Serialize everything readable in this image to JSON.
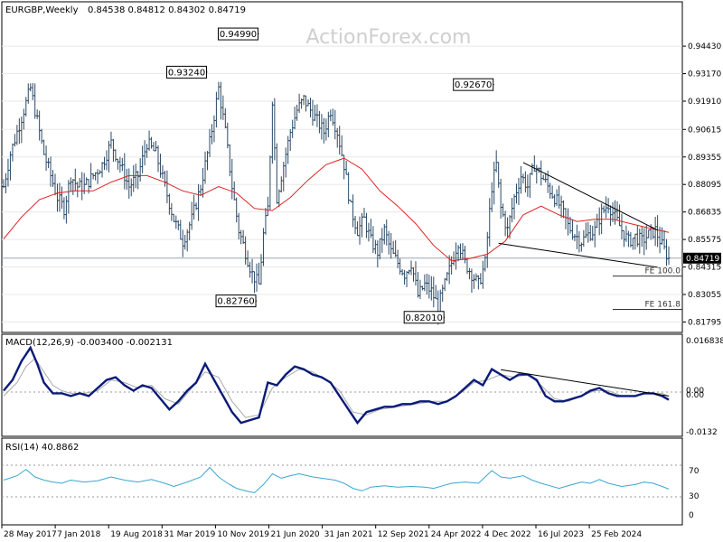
{
  "header": {
    "symbol": "EURGBP,Weekly",
    "ohlc": "0.84538 0.84812 0.84302 0.84719",
    "watermark": "ActionForex.com"
  },
  "colors": {
    "bars": "#2b4a66",
    "ma": "#dd2222",
    "macd": "#0a1a78",
    "signal": "#aaaaaa",
    "rsi": "#3aa6d0",
    "trend": "#000000",
    "fe_line": "#333333",
    "grid": "#e8e8e8",
    "border": "#000000"
  },
  "chart_data": [
    {
      "type": "ohlc",
      "title": "EURGBP,Weekly",
      "y_range": [
        0.814,
        0.958
      ],
      "y_ticks": [
        "0.94430",
        "0.93170",
        "0.91910",
        "0.90615",
        "0.89355",
        "0.88095",
        "0.86835",
        "0.85575",
        "0.84315",
        "0.83055",
        "0.81795"
      ],
      "last_price": "0.84719",
      "x_labels": [
        "28 May 2017",
        "7 Jan 2018",
        "19 Aug 2018",
        "31 Mar 2019",
        "10 Nov 2019",
        "21 Jun 2020",
        "31 Jan 2021",
        "12 Sep 2021",
        "24 Apr 2022",
        "4 Dec 2022",
        "16 Jul 2023",
        "25 Feb 2024"
      ],
      "close_path": [
        [
          0,
          0.88
        ],
        [
          3,
          0.895
        ],
        [
          6,
          0.905
        ],
        [
          9,
          0.915
        ],
        [
          12,
          0.925
        ],
        [
          15,
          0.91
        ],
        [
          18,
          0.895
        ],
        [
          21,
          0.885
        ],
        [
          24,
          0.875
        ],
        [
          27,
          0.87
        ],
        [
          30,
          0.885
        ],
        [
          33,
          0.88
        ],
        [
          36,
          0.88
        ],
        [
          40,
          0.885
        ],
        [
          44,
          0.89
        ],
        [
          48,
          0.9
        ],
        [
          52,
          0.89
        ],
        [
          56,
          0.88
        ],
        [
          60,
          0.885
        ],
        [
          64,
          0.9
        ],
        [
          68,
          0.895
        ],
        [
          72,
          0.88
        ],
        [
          76,
          0.865
        ],
        [
          80,
          0.855
        ],
        [
          84,
          0.865
        ],
        [
          88,
          0.88
        ],
        [
          92,
          0.9
        ],
        [
          96,
          0.925
        ],
        [
          99,
          0.905
        ],
        [
          102,
          0.88
        ],
        [
          105,
          0.86
        ],
        [
          108,
          0.85
        ],
        [
          111,
          0.84
        ],
        [
          114,
          0.835
        ],
        [
          116,
          0.858
        ],
        [
          118,
          0.87
        ],
        [
          120,
          0.92
        ],
        [
          122,
          0.875
        ],
        [
          125,
          0.89
        ],
        [
          128,
          0.905
        ],
        [
          131,
          0.915
        ],
        [
          134,
          0.92
        ],
        [
          137,
          0.915
        ],
        [
          140,
          0.91
        ],
        [
          143,
          0.905
        ],
        [
          146,
          0.915
        ],
        [
          149,
          0.905
        ],
        [
          152,
          0.89
        ],
        [
          155,
          0.87
        ],
        [
          158,
          0.86
        ],
        [
          161,
          0.865
        ],
        [
          164,
          0.855
        ],
        [
          167,
          0.85
        ],
        [
          170,
          0.86
        ],
        [
          173,
          0.85
        ],
        [
          176,
          0.845
        ],
        [
          179,
          0.84
        ],
        [
          182,
          0.845
        ],
        [
          185,
          0.83
        ],
        [
          188,
          0.835
        ],
        [
          191,
          0.832
        ],
        [
          194,
          0.825
        ],
        [
          197,
          0.835
        ],
        [
          200,
          0.845
        ],
        [
          203,
          0.855
        ],
        [
          206,
          0.845
        ],
        [
          209,
          0.84
        ],
        [
          212,
          0.835
        ],
        [
          215,
          0.845
        ],
        [
          218,
          0.88
        ],
        [
          220,
          0.89
        ],
        [
          222,
          0.87
        ],
        [
          225,
          0.86
        ],
        [
          228,
          0.875
        ],
        [
          231,
          0.885
        ],
        [
          234,
          0.88
        ],
        [
          237,
          0.89
        ],
        [
          240,
          0.885
        ],
        [
          243,
          0.88
        ],
        [
          246,
          0.875
        ],
        [
          249,
          0.87
        ],
        [
          252,
          0.862
        ],
        [
          255,
          0.858
        ],
        [
          258,
          0.855
        ],
        [
          261,
          0.858
        ],
        [
          264,
          0.86
        ],
        [
          267,
          0.868
        ],
        [
          270,
          0.872
        ],
        [
          273,
          0.866
        ],
        [
          276,
          0.86
        ],
        [
          279,
          0.855
        ],
        [
          282,
          0.857
        ],
        [
          285,
          0.855
        ],
        [
          288,
          0.858
        ],
        [
          291,
          0.86
        ],
        [
          294,
          0.853
        ],
        [
          297,
          0.847
        ]
      ],
      "ma_path": [
        [
          0,
          0.856
        ],
        [
          8,
          0.866
        ],
        [
          16,
          0.874
        ],
        [
          24,
          0.877
        ],
        [
          32,
          0.878
        ],
        [
          40,
          0.878
        ],
        [
          48,
          0.882
        ],
        [
          56,
          0.885
        ],
        [
          64,
          0.885
        ],
        [
          72,
          0.882
        ],
        [
          80,
          0.878
        ],
        [
          88,
          0.876
        ],
        [
          96,
          0.88
        ],
        [
          104,
          0.877
        ],
        [
          112,
          0.87
        ],
        [
          120,
          0.869
        ],
        [
          128,
          0.875
        ],
        [
          136,
          0.883
        ],
        [
          144,
          0.89
        ],
        [
          152,
          0.893
        ],
        [
          160,
          0.888
        ],
        [
          168,
          0.878
        ],
        [
          176,
          0.871
        ],
        [
          184,
          0.863
        ],
        [
          192,
          0.853
        ],
        [
          200,
          0.846
        ],
        [
          208,
          0.847
        ],
        [
          216,
          0.849
        ],
        [
          224,
          0.855
        ],
        [
          232,
          0.867
        ],
        [
          240,
          0.871
        ],
        [
          248,
          0.867
        ],
        [
          256,
          0.864
        ],
        [
          264,
          0.865
        ],
        [
          272,
          0.865
        ],
        [
          280,
          0.863
        ],
        [
          288,
          0.861
        ],
        [
          297,
          0.859
        ]
      ],
      "labels": [
        {
          "text": "0.93240",
          "at": [
            91,
            0.9324
          ]
        },
        {
          "text": "0.94990",
          "at": [
            114,
            0.9499
          ]
        },
        {
          "text": "0.82760",
          "at": [
            113,
            0.8276
          ]
        },
        {
          "text": "0.92670",
          "at": [
            219,
            0.9267
          ]
        },
        {
          "text": "0.82010",
          "at": [
            197,
            0.8201
          ]
        }
      ],
      "trendlines": [
        [
          [
            232,
            0.891
          ],
          [
            292,
            0.86
          ]
        ],
        [
          [
            221,
            0.854
          ],
          [
            292,
            0.843
          ]
        ]
      ],
      "fe_levels": [
        {
          "text": "FE 100.0",
          "value": 0.839
        },
        {
          "text": "FE 161.8",
          "value": 0.8237
        }
      ]
    },
    {
      "type": "line",
      "title": "MACD(12,26,9) -0.003400 -0.002131",
      "y_range": [
        -0.016,
        0.019
      ],
      "y_ticks": [
        "0.016838",
        "0.00",
        "0.00",
        "-0.0132"
      ],
      "macd_path": [
        [
          0,
          0.0
        ],
        [
          4,
          0.004
        ],
        [
          8,
          0.011
        ],
        [
          12,
          0.016
        ],
        [
          15,
          0.01
        ],
        [
          18,
          0.003
        ],
        [
          22,
          -0.001
        ],
        [
          26,
          -0.001
        ],
        [
          30,
          -0.002
        ],
        [
          34,
          -0.001
        ],
        [
          38,
          -0.002
        ],
        [
          42,
          0.001
        ],
        [
          46,
          0.004
        ],
        [
          50,
          0.005
        ],
        [
          54,
          0.002
        ],
        [
          58,
          0.0
        ],
        [
          62,
          0.002
        ],
        [
          66,
          0.001
        ],
        [
          70,
          -0.003
        ],
        [
          74,
          -0.007
        ],
        [
          78,
          -0.004
        ],
        [
          82,
          0.0
        ],
        [
          86,
          0.003
        ],
        [
          90,
          0.01
        ],
        [
          94,
          0.004
        ],
        [
          98,
          -0.002
        ],
        [
          102,
          -0.008
        ],
        [
          106,
          -0.012
        ],
        [
          110,
          -0.011
        ],
        [
          114,
          -0.01
        ],
        [
          118,
          0.003
        ],
        [
          122,
          0.002
        ],
        [
          126,
          0.006
        ],
        [
          130,
          0.009
        ],
        [
          134,
          0.008
        ],
        [
          138,
          0.006
        ],
        [
          142,
          0.005
        ],
        [
          146,
          0.003
        ],
        [
          150,
          -0.002
        ],
        [
          154,
          -0.007
        ],
        [
          158,
          -0.012
        ],
        [
          162,
          -0.008
        ],
        [
          166,
          -0.007
        ],
        [
          170,
          -0.006
        ],
        [
          174,
          -0.006
        ],
        [
          178,
          -0.005
        ],
        [
          182,
          -0.005
        ],
        [
          186,
          -0.004
        ],
        [
          190,
          -0.004
        ],
        [
          194,
          -0.005
        ],
        [
          198,
          -0.004
        ],
        [
          202,
          -0.002
        ],
        [
          206,
          0.001
        ],
        [
          210,
          0.004
        ],
        [
          214,
          0.002
        ],
        [
          218,
          0.008
        ],
        [
          222,
          0.006
        ],
        [
          226,
          0.004
        ],
        [
          230,
          0.006
        ],
        [
          234,
          0.006
        ],
        [
          238,
          0.004
        ],
        [
          242,
          -0.002
        ],
        [
          246,
          -0.004
        ],
        [
          250,
          -0.004
        ],
        [
          254,
          -0.003
        ],
        [
          258,
          -0.002
        ],
        [
          262,
          0.0
        ],
        [
          266,
          0.001
        ],
        [
          270,
          -0.001
        ],
        [
          274,
          -0.002
        ],
        [
          278,
          -0.002
        ],
        [
          282,
          -0.002
        ],
        [
          286,
          -0.001
        ],
        [
          290,
          -0.001
        ],
        [
          294,
          -0.002
        ],
        [
          297,
          -0.0034
        ]
      ],
      "signal_path": [
        [
          0,
          -0.002
        ],
        [
          6,
          0.003
        ],
        [
          10,
          0.009
        ],
        [
          14,
          0.012
        ],
        [
          18,
          0.007
        ],
        [
          22,
          0.002
        ],
        [
          26,
          0.0
        ],
        [
          30,
          -0.001
        ],
        [
          36,
          -0.001
        ],
        [
          42,
          0.0
        ],
        [
          48,
          0.004
        ],
        [
          54,
          0.003
        ],
        [
          60,
          0.001
        ],
        [
          66,
          0.002
        ],
        [
          72,
          -0.003
        ],
        [
          78,
          -0.005
        ],
        [
          84,
          0.001
        ],
        [
          90,
          0.007
        ],
        [
          96,
          0.005
        ],
        [
          102,
          -0.004
        ],
        [
          108,
          -0.01
        ],
        [
          114,
          -0.009
        ],
        [
          120,
          0.001
        ],
        [
          126,
          0.005
        ],
        [
          132,
          0.008
        ],
        [
          138,
          0.007
        ],
        [
          144,
          0.004
        ],
        [
          150,
          0.0
        ],
        [
          156,
          -0.008
        ],
        [
          162,
          -0.009
        ],
        [
          168,
          -0.007
        ],
        [
          176,
          -0.006
        ],
        [
          184,
          -0.005
        ],
        [
          192,
          -0.004
        ],
        [
          198,
          -0.004
        ],
        [
          204,
          -0.001
        ],
        [
          210,
          0.003
        ],
        [
          216,
          0.004
        ],
        [
          222,
          0.006
        ],
        [
          228,
          0.005
        ],
        [
          234,
          0.006
        ],
        [
          240,
          0.002
        ],
        [
          246,
          -0.003
        ],
        [
          252,
          -0.004
        ],
        [
          258,
          -0.002
        ],
        [
          264,
          0.0
        ],
        [
          270,
          0.0
        ],
        [
          276,
          -0.002
        ],
        [
          282,
          -0.002
        ],
        [
          288,
          -0.001
        ],
        [
          294,
          -0.001
        ],
        [
          297,
          -0.002131
        ]
      ],
      "trendline": [
        [
          222,
          0.0078
        ],
        [
          297,
          -0.002
        ]
      ]
    },
    {
      "type": "line",
      "title": "RSI(14) 40.8862",
      "y_range": [
        0,
        100
      ],
      "y_ticks": [
        "70",
        "30",
        "0"
      ],
      "rsi_path": [
        [
          0,
          55
        ],
        [
          6,
          62
        ],
        [
          10,
          72
        ],
        [
          14,
          60
        ],
        [
          18,
          55
        ],
        [
          22,
          52
        ],
        [
          26,
          50
        ],
        [
          30,
          55
        ],
        [
          36,
          52
        ],
        [
          42,
          54
        ],
        [
          48,
          60
        ],
        [
          54,
          55
        ],
        [
          60,
          52
        ],
        [
          66,
          56
        ],
        [
          72,
          50
        ],
        [
          76,
          45
        ],
        [
          82,
          52
        ],
        [
          88,
          60
        ],
        [
          92,
          75
        ],
        [
          96,
          60
        ],
        [
          100,
          50
        ],
        [
          104,
          42
        ],
        [
          108,
          38
        ],
        [
          112,
          35
        ],
        [
          116,
          48
        ],
        [
          120,
          65
        ],
        [
          124,
          58
        ],
        [
          128,
          62
        ],
        [
          132,
          65
        ],
        [
          138,
          60
        ],
        [
          142,
          58
        ],
        [
          148,
          55
        ],
        [
          152,
          50
        ],
        [
          156,
          42
        ],
        [
          160,
          38
        ],
        [
          164,
          44
        ],
        [
          170,
          46
        ],
        [
          176,
          44
        ],
        [
          182,
          45
        ],
        [
          188,
          44
        ],
        [
          192,
          42
        ],
        [
          196,
          46
        ],
        [
          200,
          50
        ],
        [
          206,
          52
        ],
        [
          212,
          50
        ],
        [
          218,
          70
        ],
        [
          222,
          60
        ],
        [
          226,
          58
        ],
        [
          232,
          62
        ],
        [
          236,
          55
        ],
        [
          240,
          50
        ],
        [
          244,
          46
        ],
        [
          248,
          42
        ],
        [
          254,
          48
        ],
        [
          258,
          52
        ],
        [
          262,
          50
        ],
        [
          266,
          56
        ],
        [
          270,
          50
        ],
        [
          276,
          45
        ],
        [
          282,
          48
        ],
        [
          286,
          52
        ],
        [
          290,
          50
        ],
        [
          294,
          45
        ],
        [
          297,
          40.9
        ]
      ]
    }
  ]
}
